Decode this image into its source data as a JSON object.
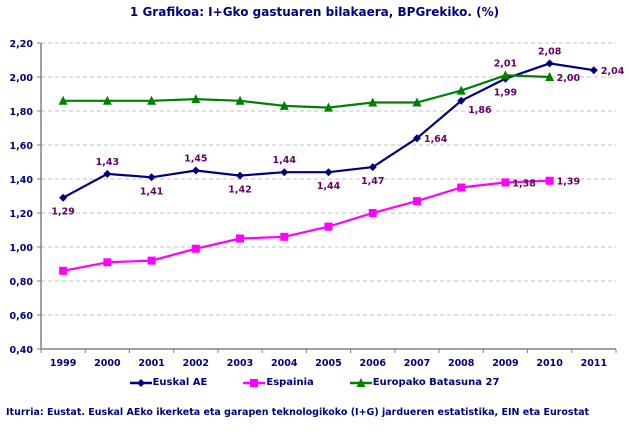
{
  "chart_data": {
    "type": "line",
    "title": "1 Grafikoa: I+Gko gastuaren bilakaera, BPGrekiko. (%)",
    "xlabel": "",
    "ylabel": "",
    "categories": [
      "1999",
      "2000",
      "2001",
      "2002",
      "2003",
      "2004",
      "2005",
      "2006",
      "2007",
      "2008",
      "2009",
      "2010",
      "2011"
    ],
    "ylim": [
      0.4,
      2.2
    ],
    "yticks": [
      "0,40",
      "0,60",
      "0,80",
      "1,00",
      "1,20",
      "1,40",
      "1,60",
      "1,80",
      "2,00",
      "2,20"
    ],
    "grid": "horizontal dashed",
    "legend_position": "bottom",
    "series": [
      {
        "name": "Euskal AE",
        "color": "#000080",
        "marker": "diamond",
        "values": [
          1.29,
          1.43,
          1.41,
          1.45,
          1.42,
          1.44,
          1.44,
          1.47,
          1.64,
          1.86,
          1.99,
          2.08,
          2.04
        ],
        "labels": [
          "1,29",
          "1,43",
          "1,41",
          "1,45",
          "1,42",
          "1,44",
          "1,44",
          "1,47",
          "1,64",
          "1,86",
          "1,99",
          "2,08",
          "2,04"
        ]
      },
      {
        "name": "Espainia",
        "color": "#FF00FF",
        "marker": "square",
        "values": [
          0.86,
          0.91,
          0.92,
          0.99,
          1.05,
          1.06,
          1.12,
          1.2,
          1.27,
          1.35,
          1.38,
          1.39,
          null
        ],
        "labels": [
          null,
          null,
          null,
          null,
          null,
          null,
          null,
          null,
          null,
          null,
          "1,38",
          "1,39",
          null
        ]
      },
      {
        "name": "Europako Batasuna 27",
        "color": "#008000",
        "marker": "triangle",
        "values": [
          1.86,
          1.86,
          1.86,
          1.87,
          1.86,
          1.83,
          1.82,
          1.85,
          1.85,
          1.92,
          2.01,
          2.0,
          null
        ],
        "labels": [
          null,
          null,
          null,
          null,
          null,
          null,
          null,
          null,
          null,
          null,
          "2,01",
          "2,00",
          null
        ]
      }
    ]
  },
  "source": "Iturria: Eustat. Euskal AEko ikerketa eta garapen teknologikoko (I+G) jardueren estatistika, EIN eta Eurostat"
}
